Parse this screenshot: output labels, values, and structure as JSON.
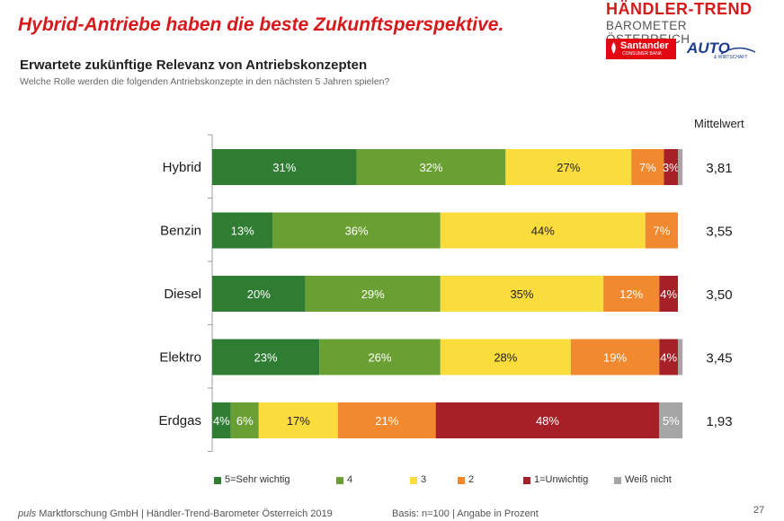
{
  "header": {
    "headline": "Hybrid-Antriebe haben die beste Zukunftsperspektive.",
    "subtitle": "Erwartete zukünftige Relevanz von Antriebskonzepten",
    "question": "Welche Rolle werden die folgenden Antriebskonzepte in den nächsten 5 Jahren spielen?"
  },
  "logos": {
    "brand_title": "HÄNDLER-TREND",
    "brand_subtitle": "BAROMETER ÖSTERREICH",
    "santander": "Santander",
    "santander_sub": "CONSUMER BANK",
    "auto": "AUTO",
    "auto_sub": "& WIRTSCHAFT"
  },
  "chart_data": {
    "type": "bar",
    "orientation": "horizontal",
    "stacked": true,
    "unit": "%",
    "categories": [
      "Hybrid",
      "Benzin",
      "Diesel",
      "Elektro",
      "Erdgas"
    ],
    "series": [
      {
        "name": "5=Sehr wichtig",
        "color": "#2e7d32",
        "values": [
          31,
          13,
          20,
          23,
          4
        ],
        "labels": [
          "31%",
          "13%",
          "20%",
          "23%",
          "4%"
        ]
      },
      {
        "name": "4",
        "color": "#6aa033",
        "values": [
          32,
          36,
          29,
          26,
          6
        ],
        "labels": [
          "32%",
          "36%",
          "29%",
          "26%",
          "6%"
        ]
      },
      {
        "name": "3",
        "color": "#fbdc3d",
        "values": [
          27,
          44,
          35,
          28,
          17
        ],
        "labels": [
          "27%",
          "44%",
          "35%",
          "28%",
          "17%"
        ]
      },
      {
        "name": "2",
        "color": "#f0892f",
        "values": [
          7,
          7,
          12,
          19,
          21
        ],
        "labels": [
          "7%",
          "7%",
          "12%",
          "19%",
          "21%"
        ]
      },
      {
        "name": "1=Unwichtig",
        "color": "#a62028",
        "values": [
          3,
          0,
          4,
          4,
          48
        ],
        "labels": [
          "3%",
          "",
          "4%",
          "4%",
          "48%"
        ]
      },
      {
        "name": "Weiß nicht",
        "color": "#a6a6a6",
        "values": [
          1,
          0,
          0,
          1,
          5
        ],
        "labels": [
          "",
          "",
          "",
          "",
          "5%"
        ]
      }
    ],
    "mittelwert_header": "Mittelwert",
    "mittelwert": [
      "3,81",
      "3,55",
      "3,50",
      "3,45",
      "1,93"
    ],
    "xlim": [
      0,
      100
    ],
    "legend_position": "bottom"
  },
  "footer": {
    "source_brand": "puls",
    "source_rest": "Marktforschung GmbH | Händler-Trend-Barometer Österreich 2019",
    "basis": "Basis: n=100 | Angabe in Prozent",
    "page": "27"
  }
}
